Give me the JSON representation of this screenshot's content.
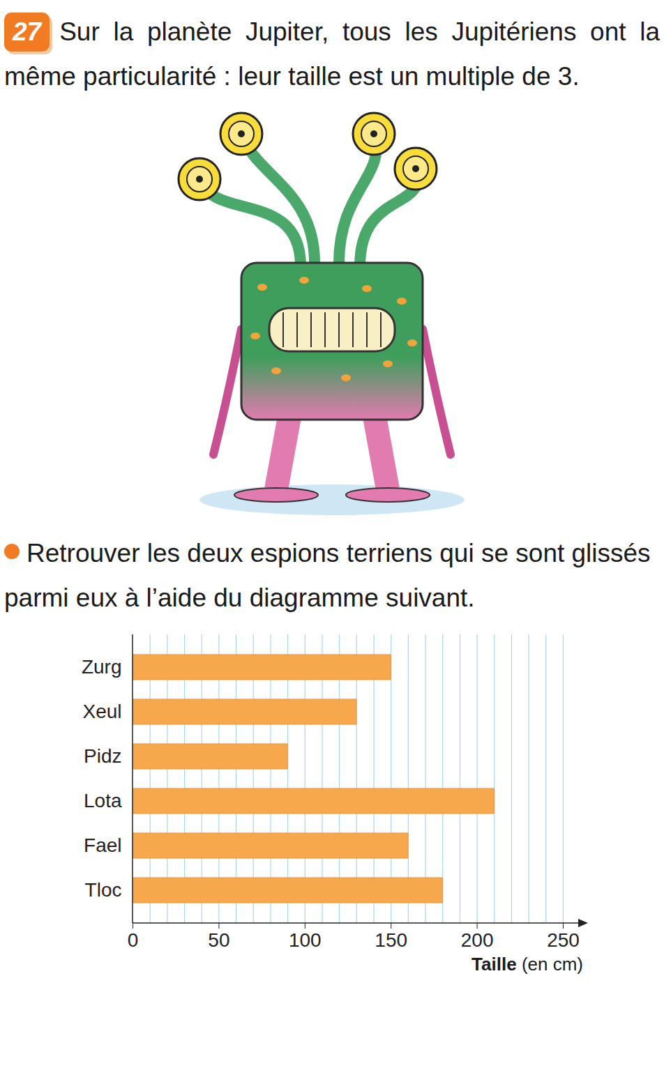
{
  "chart_data": {
    "type": "bar",
    "orientation": "horizontal",
    "title": "Sur la planète Jupiter, tous les Jupitériens ont la même particularité : leur taille est un multiple de 3.",
    "subtitle": "Retrouver les deux espions terriens qui se sont glissés parmi eux à l’aide du diagramme suivant.",
    "annotations": [
      "27"
    ],
    "categories": [
      "Zurg",
      "Xeul",
      "Pidz",
      "Lota",
      "Fael",
      "Tloc"
    ],
    "values": [
      150,
      130,
      90,
      210,
      160,
      180
    ],
    "color": "#f7a84c",
    "xlabel": "Taille (en cm)",
    "xlim": [
      0,
      250
    ],
    "xticks": [
      0,
      50,
      100,
      150,
      200,
      250
    ],
    "grid": true
  }
}
